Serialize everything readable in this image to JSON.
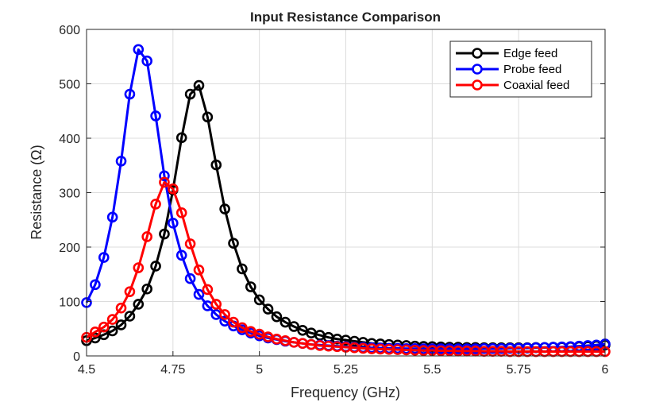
{
  "chart_data": {
    "type": "line",
    "title": "Input Resistance Comparison",
    "xlabel": "Frequency (GHz)",
    "ylabel": "Resistance  (Ω)",
    "xlim": [
      4.5,
      6
    ],
    "ylim": [
      0,
      600
    ],
    "xticks": [
      "4.5",
      "4.75",
      "5",
      "5.25",
      "5.5",
      "5.75",
      "6"
    ],
    "yticks": [
      "0",
      "100",
      "200",
      "300",
      "400",
      "500",
      "600"
    ],
    "grid": true,
    "legend_position": "top-right",
    "marker": "circle",
    "x": [
      4.5,
      4.525,
      4.55,
      4.575,
      4.6,
      4.625,
      4.65,
      4.675,
      4.7,
      4.725,
      4.75,
      4.775,
      4.8,
      4.825,
      4.85,
      4.875,
      4.9,
      4.925,
      4.95,
      4.975,
      5.0,
      5.025,
      5.05,
      5.075,
      5.1,
      5.125,
      5.15,
      5.175,
      5.2,
      5.225,
      5.25,
      5.275,
      5.3,
      5.325,
      5.35,
      5.375,
      5.4,
      5.425,
      5.45,
      5.475,
      5.5,
      5.525,
      5.55,
      5.575,
      5.6,
      5.625,
      5.65,
      5.675,
      5.7,
      5.725,
      5.75,
      5.775,
      5.8,
      5.825,
      5.85,
      5.875,
      5.9,
      5.925,
      5.95,
      5.975,
      6.0
    ],
    "series": [
      {
        "name": "Edge feed",
        "color": "#000000",
        "values": [
          28,
          33,
          39,
          46,
          57,
          73,
          95,
          123,
          165,
          224,
          305,
          401,
          481,
          497,
          439,
          351,
          270,
          207,
          160,
          127,
          103,
          86,
          72,
          62,
          54,
          47,
          42,
          38,
          34,
          31,
          29,
          27,
          25,
          23,
          22,
          21,
          20,
          19,
          18,
          17.5,
          17,
          16.5,
          16,
          16,
          15.5,
          15.5,
          15,
          15,
          15,
          15,
          15,
          15,
          15.5,
          15.5,
          16,
          16,
          16.5,
          17,
          17.5,
          18.5,
          20
        ]
      },
      {
        "name": "Probe feed",
        "color": "#0000ff",
        "values": [
          98,
          131,
          181,
          255,
          358,
          481,
          563,
          542,
          441,
          331,
          244,
          185,
          142,
          113,
          92,
          76,
          64,
          55,
          48,
          42,
          37,
          33,
          30,
          27,
          25,
          23,
          21,
          20,
          19,
          18,
          17,
          16,
          15.5,
          15,
          14.5,
          14,
          14,
          13.5,
          13.5,
          13,
          13,
          13,
          13,
          13,
          13,
          13,
          13.5,
          13.5,
          13.5,
          14,
          14,
          14.5,
          15,
          15.5,
          16,
          16.5,
          17,
          18,
          19,
          20,
          22
        ]
      },
      {
        "name": "Coaxial feed",
        "color": "#ff0000",
        "values": [
          34,
          44,
          53,
          67,
          88,
          118,
          162,
          219,
          279,
          319,
          307,
          263,
          206,
          158,
          122,
          95,
          76,
          62,
          52,
          45,
          40,
          35,
          31,
          28,
          25,
          23,
          21,
          19,
          18,
          17,
          16,
          15,
          14,
          13,
          12.5,
          12,
          11.5,
          11,
          10.5,
          10,
          10,
          9.5,
          9.5,
          9,
          9,
          9,
          8.5,
          8.5,
          8.5,
          8,
          8,
          8,
          8,
          8,
          8,
          8,
          8,
          8,
          8,
          8,
          8
        ]
      }
    ]
  }
}
